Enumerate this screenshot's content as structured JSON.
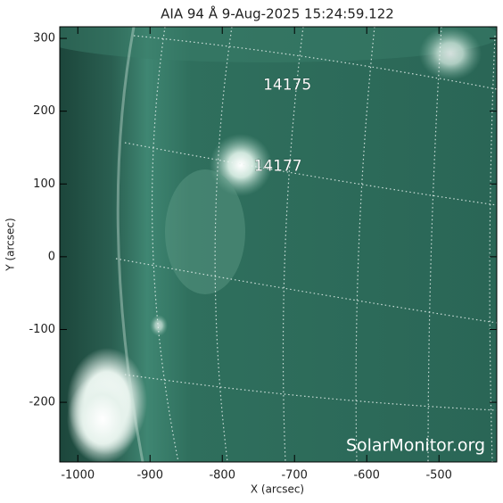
{
  "chart_data": {
    "type": "image",
    "title": "AIA 94 Å  9-Aug-2025 15:24:59.122",
    "xlabel": "X (arcsec)",
    "ylabel": "Y (arcsec)",
    "xlim": [
      -1025,
      -420
    ],
    "ylim": [
      -282,
      316
    ],
    "xticks": [
      -1000,
      -900,
      -800,
      -700,
      -600,
      -500
    ],
    "yticks": [
      -200,
      -100,
      0,
      100,
      200,
      300
    ],
    "annotations": [
      {
        "text": "14175",
        "x": -710,
        "y": 236
      },
      {
        "text": "14177",
        "x": -723,
        "y": 124
      }
    ],
    "watermark": "SolarMonitor.org"
  }
}
